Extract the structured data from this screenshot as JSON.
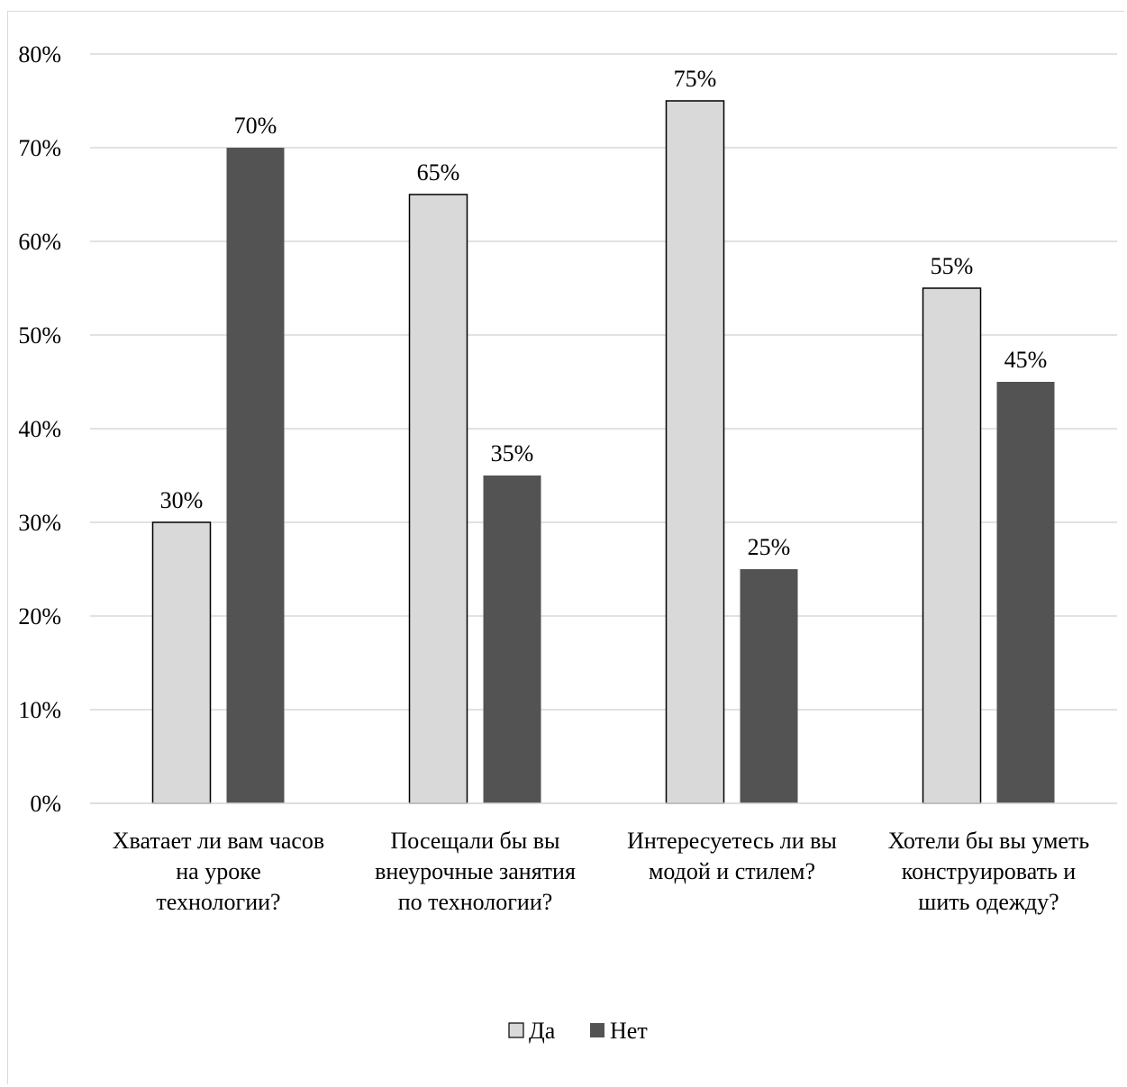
{
  "chart_data": {
    "type": "bar",
    "categories": [
      [
        "Хватает ли вам часов",
        "на уроке",
        "технологии?"
      ],
      [
        "Посещали бы вы",
        "внеурочные занятия",
        "по технологии?"
      ],
      [
        "Интересуетесь ли вы",
        "модой и стилем?"
      ],
      [
        "Хотели бы вы уметь",
        "конструировать и",
        "шить одежду?"
      ]
    ],
    "series": [
      {
        "name": "Да",
        "values": [
          30,
          65,
          75,
          55
        ],
        "labels": [
          "30%",
          "65%",
          "75%",
          "55%"
        ],
        "color": "#d9d9d9",
        "outline": "#000000"
      },
      {
        "name": "Нет",
        "values": [
          70,
          35,
          25,
          45
        ],
        "labels": [
          "70%",
          "35%",
          "25%",
          "45%"
        ],
        "color": "#535353",
        "outline": "none"
      }
    ],
    "y_ticks": [
      "0%",
      "10%",
      "20%",
      "30%",
      "40%",
      "50%",
      "60%",
      "70%",
      "80%"
    ],
    "ylim": [
      0,
      80
    ],
    "grid": true,
    "grid_color": "#d9d9d9",
    "legend_position": "bottom"
  }
}
